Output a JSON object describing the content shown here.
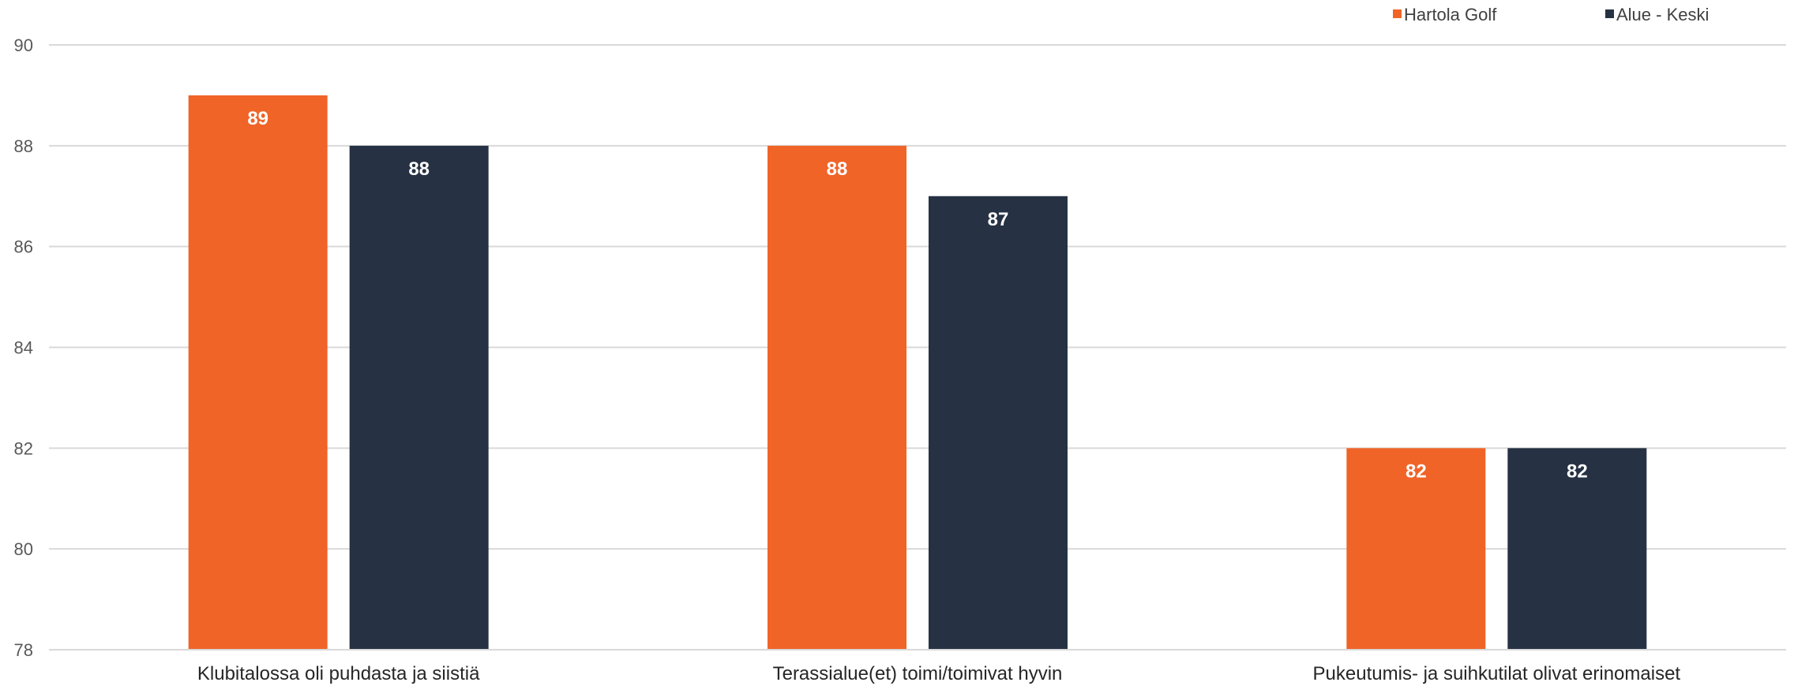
{
  "chart_data": {
    "type": "bar",
    "categories": [
      "Klubitalossa oli puhdasta ja siistiä",
      "Terassialue(et) toimi/toimivat hyvin",
      "Pukeutumis- ja suihkutilat olivat erinomaiset"
    ],
    "series": [
      {
        "name": "Hartola Golf",
        "values": [
          89,
          88,
          82
        ],
        "color": "#F06428"
      },
      {
        "name": "Alue - Keski",
        "values": [
          88,
          87,
          82
        ],
        "color": "#263243"
      }
    ],
    "ylim": [
      78,
      90
    ],
    "yticks": [
      78,
      80,
      82,
      84,
      86,
      88,
      90
    ],
    "grid": true,
    "legend_position": "top-right",
    "data_labels": true
  }
}
